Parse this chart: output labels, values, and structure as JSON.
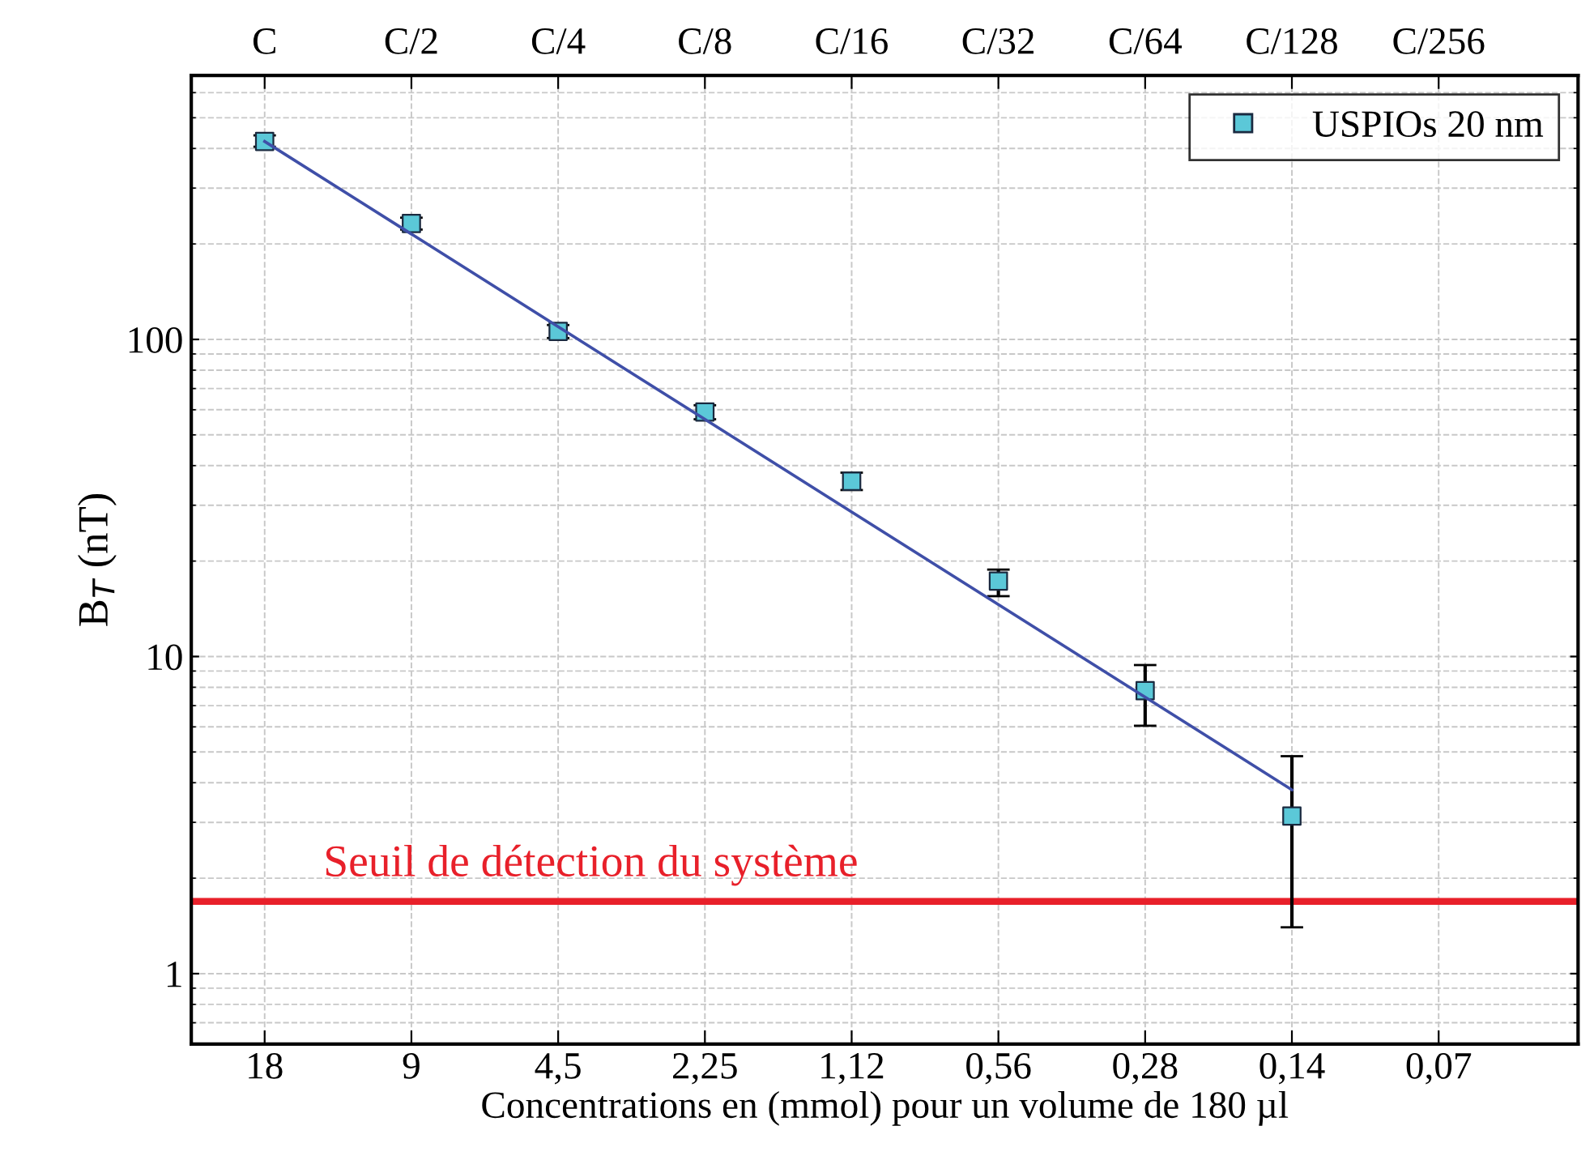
{
  "chart_data": {
    "type": "scatter",
    "xlabel": "Concentrations en (mmol) pour un volume de 180 µl",
    "ylabel": "B$_{T}$ (nT)",
    "categories": [
      "18",
      "9",
      "4,5",
      "2,25",
      "1,12",
      "0,56",
      "0,28",
      "0,14",
      "0,07"
    ],
    "annotations": [
      "C",
      "C/2",
      "C/4",
      "C/8",
      "C/16",
      "C/32",
      "C/64",
      "C/128",
      "C/256"
    ],
    "series": [
      {
        "name": "USPIOs 20 nm",
        "color": "#5bc8d8",
        "values": [
          421,
          232,
          106,
          59,
          35.7,
          17.3,
          7.8,
          3.14,
          null
        ],
        "errors": [
          [
            405,
            440
          ],
          [
            222,
            242
          ],
          [
            101,
            111
          ],
          [
            56,
            62
          ],
          [
            33.5,
            38
          ],
          [
            15.5,
            18.8
          ],
          [
            6.05,
            9.4
          ],
          [
            1.4,
            4.85
          ],
          null
        ]
      },
      {
        "type": "line",
        "marker": "none",
        "color": "#3f4fa8",
        "values": [
          421,
          null,
          null,
          null,
          null,
          null,
          null,
          3.8,
          null
        ]
      }
    ],
    "log": "y",
    "ylim": [
      0.6,
      680
    ],
    "yticks": [
      1,
      10,
      100
    ],
    "grid": true,
    "legend": "top right",
    "marker": "square",
    "ref_lines": [
      {
        "axis": "y",
        "value": 1.69,
        "label": "Seuil de détection du système",
        "color": "#e8202a"
      }
    ]
  }
}
